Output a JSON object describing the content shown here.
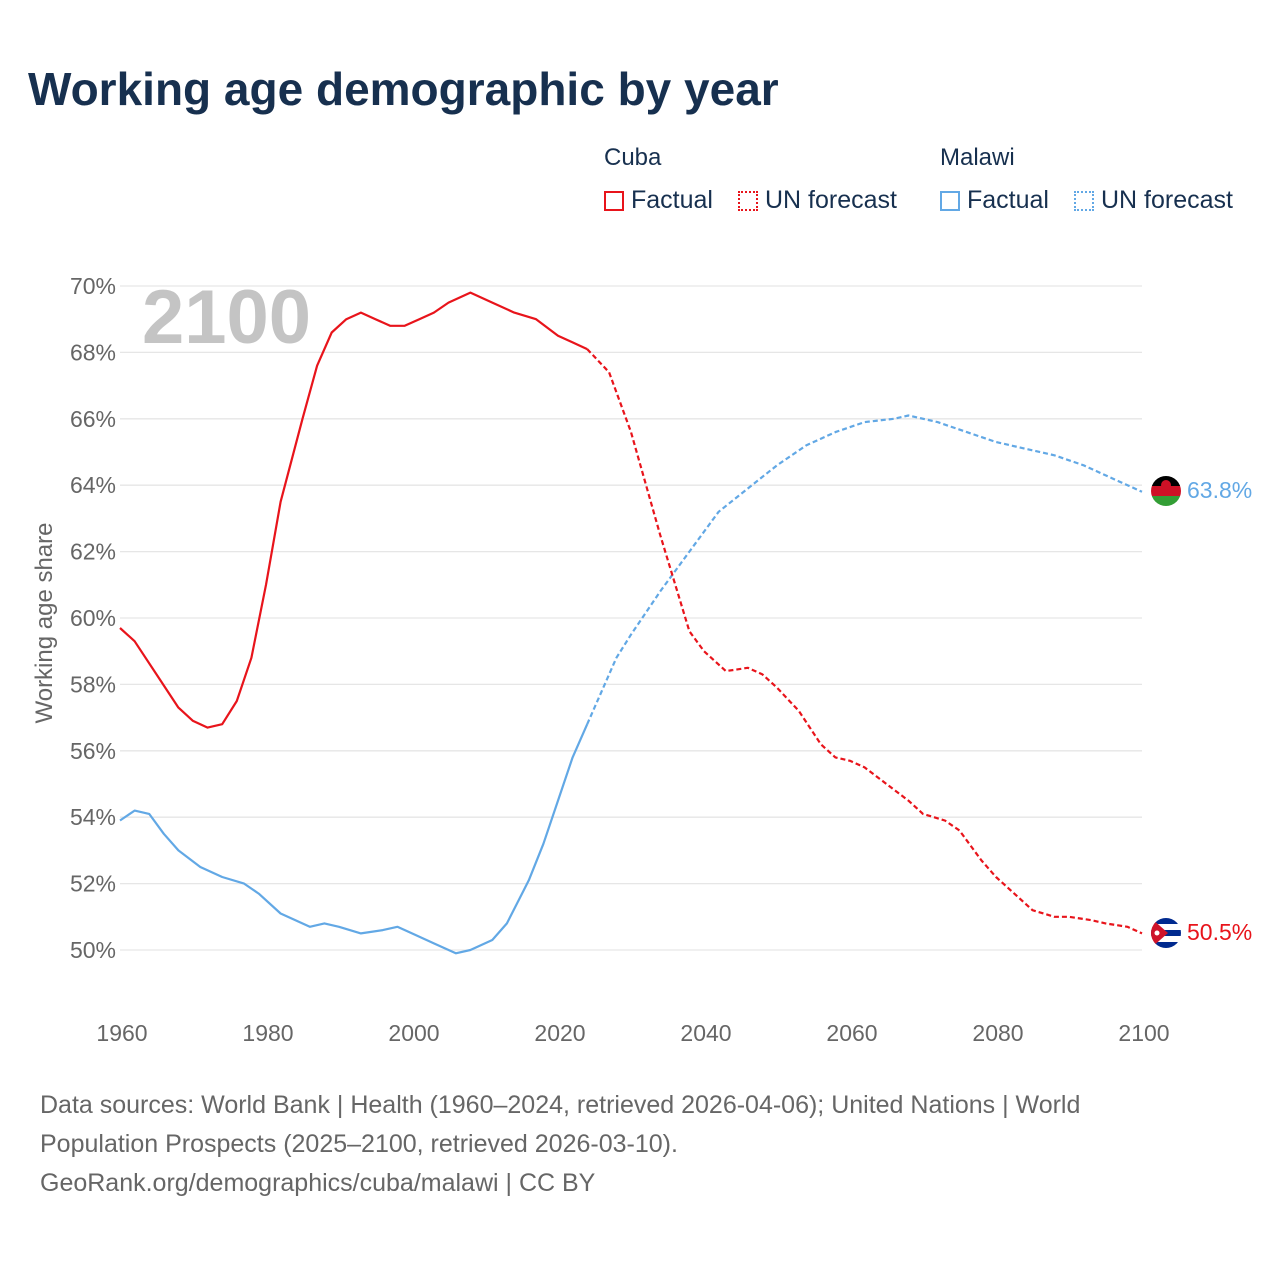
{
  "title": "Working age demographic by year",
  "legend": {
    "groups": [
      {
        "country": "Cuba",
        "color": "#e8141b",
        "factual_label": "Factual",
        "forecast_label": "UN forecast"
      },
      {
        "country": "Malawi",
        "color": "#62a8e5",
        "factual_label": "Factual",
        "forecast_label": "UN forecast"
      }
    ]
  },
  "year_watermark": "2100",
  "end_labels": {
    "cuba": "50.5%",
    "malawi": "63.8%"
  },
  "flags": {
    "cuba": "cuba-flag-icon",
    "malawi": "malawi-flag-icon"
  },
  "footer": {
    "line1": "Data sources: World Bank | Health (1960–2024, retrieved 2026-04-06); United Nations | World",
    "line2": "Population Prospects (2025–2100, retrieved 2026-03-10).",
    "line3": "GeoRank.org/demographics/cuba/malawi | CC BY"
  },
  "chart_data": {
    "type": "line",
    "title": "Working age demographic by year",
    "xlabel": "",
    "ylabel": "Working age share",
    "xlim": [
      1960,
      2100
    ],
    "ylim": [
      49,
      70.5
    ],
    "x_ticks": [
      1960,
      1980,
      2000,
      2020,
      2040,
      2060,
      2080,
      2100
    ],
    "x_tick_labels": [
      "1960",
      "1980",
      "2000",
      "2020",
      "2040",
      "2060",
      "2080",
      "2100"
    ],
    "y_ticks": [
      50,
      52,
      54,
      56,
      58,
      60,
      62,
      64,
      66,
      68,
      70
    ],
    "y_tick_labels": [
      "50%",
      "52%",
      "54%",
      "56%",
      "58%",
      "60%",
      "62%",
      "64%",
      "66%",
      "68%",
      "70%"
    ],
    "grid": true,
    "series": [
      {
        "name": "Cuba",
        "color": "#e8141b",
        "factual": {
          "x": [
            1960,
            1962,
            1965,
            1968,
            1970,
            1972,
            1974,
            1976,
            1978,
            1980,
            1982,
            1985,
            1987,
            1989,
            1991,
            1993,
            1995,
            1997,
            1999,
            2001,
            2003,
            2005,
            2008,
            2011,
            2014,
            2017,
            2020,
            2022,
            2024
          ],
          "y": [
            59.7,
            59.3,
            58.3,
            57.3,
            56.9,
            56.7,
            56.8,
            57.5,
            58.8,
            61.0,
            63.5,
            66.0,
            67.6,
            68.6,
            69.0,
            69.2,
            69.0,
            68.8,
            68.8,
            69.0,
            69.2,
            69.5,
            69.8,
            69.5,
            69.2,
            69.0,
            68.5,
            68.3,
            68.1
          ]
        },
        "forecast": {
          "x": [
            2024,
            2027,
            2030,
            2034,
            2038,
            2040,
            2043,
            2046,
            2048,
            2050,
            2053,
            2056,
            2058,
            2060,
            2062,
            2065,
            2068,
            2070,
            2073,
            2075,
            2078,
            2080,
            2083,
            2085,
            2088,
            2090,
            2093,
            2095,
            2098,
            2100
          ],
          "y": [
            68.1,
            67.4,
            65.6,
            62.5,
            59.6,
            59.0,
            58.4,
            58.5,
            58.3,
            57.9,
            57.2,
            56.2,
            55.8,
            55.7,
            55.5,
            55.0,
            54.5,
            54.1,
            53.9,
            53.6,
            52.7,
            52.2,
            51.6,
            51.2,
            51.0,
            51.0,
            50.9,
            50.8,
            50.7,
            50.5
          ]
        }
      },
      {
        "name": "Malawi",
        "color": "#62a8e5",
        "factual": {
          "x": [
            1960,
            1962,
            1964,
            1966,
            1968,
            1971,
            1974,
            1977,
            1979,
            1982,
            1986,
            1988,
            1990,
            1993,
            1996,
            1998,
            2000,
            2003,
            2006,
            2008,
            2011,
            2013,
            2016,
            2018,
            2020,
            2022,
            2024
          ],
          "y": [
            53.9,
            54.2,
            54.1,
            53.5,
            53.0,
            52.5,
            52.2,
            52.0,
            51.7,
            51.1,
            50.7,
            50.8,
            50.7,
            50.5,
            50.6,
            50.7,
            50.5,
            50.2,
            49.9,
            50.0,
            50.3,
            50.8,
            52.1,
            53.2,
            54.5,
            55.8,
            56.8
          ]
        },
        "forecast": {
          "x": [
            2024,
            2026,
            2028,
            2030,
            2034,
            2038,
            2042,
            2046,
            2050,
            2054,
            2058,
            2062,
            2066,
            2068,
            2072,
            2076,
            2080,
            2084,
            2088,
            2092,
            2096,
            2100
          ],
          "y": [
            56.8,
            57.8,
            58.8,
            59.5,
            60.8,
            62.0,
            63.2,
            63.9,
            64.6,
            65.2,
            65.6,
            65.9,
            66.0,
            66.1,
            65.9,
            65.6,
            65.3,
            65.1,
            64.9,
            64.6,
            64.2,
            63.8
          ]
        }
      }
    ]
  }
}
